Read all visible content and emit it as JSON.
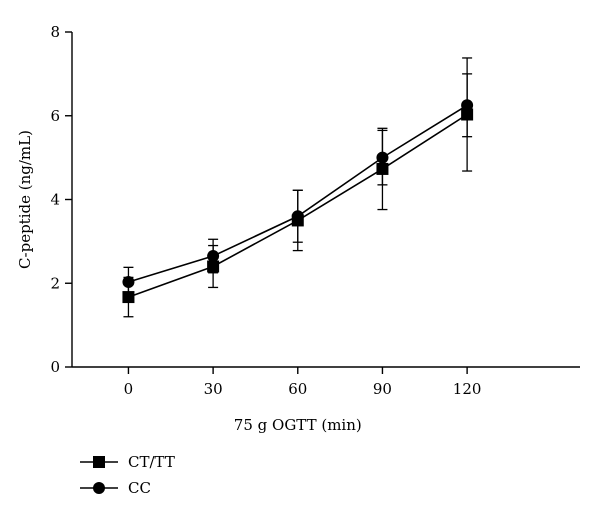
{
  "chart_data": {
    "type": "line",
    "xlabel": "75 g OGTT (min)",
    "ylabel": "C-peptide (ng/mL)",
    "x": [
      0,
      30,
      60,
      90,
      120
    ],
    "x_ticks": [
      0,
      30,
      60,
      90,
      120
    ],
    "y_ticks": [
      0,
      2,
      4,
      6,
      8
    ],
    "xlim": [
      -20,
      160
    ],
    "ylim": [
      0,
      8
    ],
    "grid": false,
    "legend_position": "bottom-left",
    "series": [
      {
        "name": "CT/TT",
        "marker": "square",
        "values": [
          1.67,
          2.4,
          3.5,
          4.73,
          6.03
        ],
        "error": [
          0.47,
          0.5,
          0.72,
          0.97,
          1.35
        ]
      },
      {
        "name": "CC",
        "marker": "circle",
        "values": [
          2.03,
          2.65,
          3.6,
          5.0,
          6.25
        ],
        "error": [
          0.35,
          0.4,
          0.62,
          0.65,
          0.75
        ]
      }
    ],
    "colors": {
      "line": "#000000",
      "marker": "#000000"
    }
  }
}
